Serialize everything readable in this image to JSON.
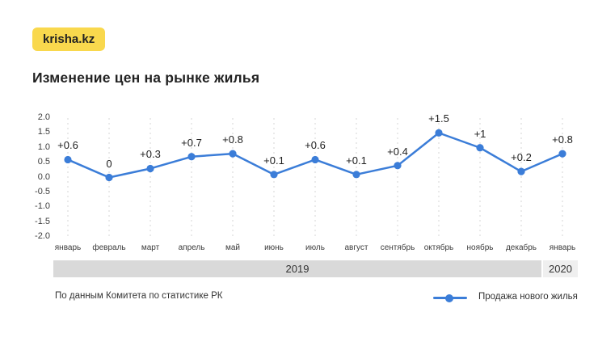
{
  "brand": {
    "badge_label": "krisha.kz",
    "badge_color": "#f9d84d"
  },
  "page": {
    "title": "Изменение цен на рынке жилья",
    "background": "#ffffff"
  },
  "chart_data": {
    "type": "line",
    "title": "Изменение цен на рынке жилья",
    "categories": [
      "январь",
      "февраль",
      "март",
      "апрель",
      "май",
      "июнь",
      "июль",
      "август",
      "сентябрь",
      "октябрь",
      "ноябрь",
      "декабрь",
      "январь"
    ],
    "values": [
      0.6,
      0,
      0.3,
      0.7,
      0.8,
      0.1,
      0.6,
      0.1,
      0.4,
      1.5,
      1,
      0.2,
      0.8
    ],
    "point_labels": [
      "+0.6",
      "0",
      "+0.3",
      "+0.7",
      "+0.8",
      "+0.1",
      "+0.6",
      "+0.1",
      "+0.4",
      "+1.5",
      "+1",
      "+0.2",
      "+0.8"
    ],
    "series": [
      {
        "name": "Продажа нового жилья",
        "values": [
          0.6,
          0,
          0.3,
          0.7,
          0.8,
          0.1,
          0.6,
          0.1,
          0.4,
          1.5,
          1,
          0.2,
          0.8
        ]
      }
    ],
    "xlabel": "",
    "ylabel": "",
    "ylim": [
      -2.0,
      2.0
    ],
    "yticks": [
      "2.0",
      "1.5",
      "1.0",
      "0.5",
      "0.0",
      "-0.5",
      "-1.0",
      "-1.5",
      "-2.0"
    ],
    "grid": "vertical-dashed",
    "line_color": "#3b7dd8",
    "grid_color": "#d4d4d4",
    "legend_position": "bottom-right",
    "year_groups": [
      {
        "label": "2019",
        "months": 12
      },
      {
        "label": "2020",
        "months": 1
      }
    ]
  },
  "footer": {
    "source": "По данным Комитета по статистике РК",
    "legend_label": "Продажа нового жилья"
  }
}
